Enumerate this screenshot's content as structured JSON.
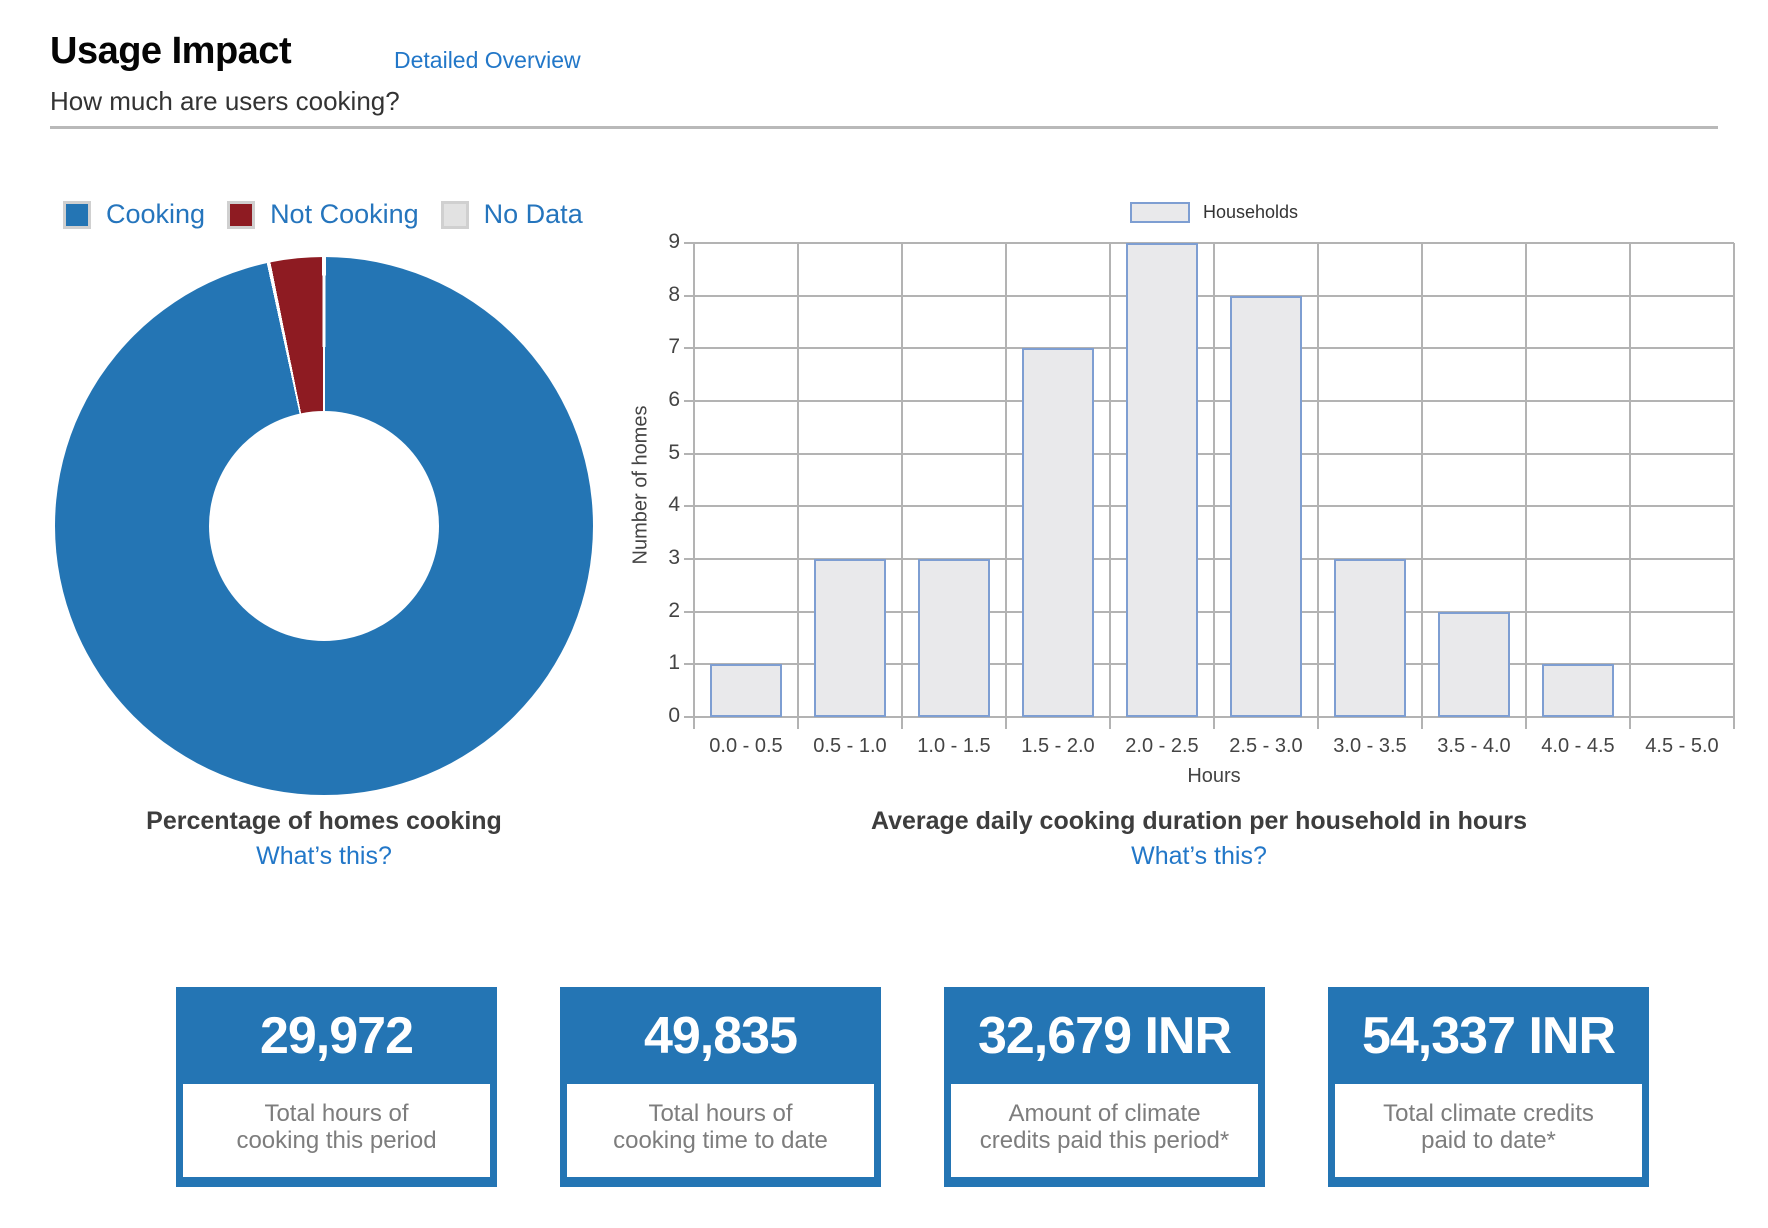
{
  "header": {
    "title": "Usage Impact",
    "link_label": "Detailed Overview",
    "subtitle": "How much are users cooking?"
  },
  "donut": {
    "title": "Percentage of homes cooking",
    "whats_this": "What’s this?"
  },
  "histogram": {
    "legend_label": "Households",
    "title": "Average daily cooking duration per household in hours",
    "whats_this": "What’s this?",
    "xlabel": "Hours",
    "ylabel": "Number of homes"
  },
  "cards": [
    {
      "value": "29,972",
      "label": "Total hours of\ncooking this period"
    },
    {
      "value": "49,835",
      "label": "Total hours of\ncooking time to date"
    },
    {
      "value": "32,679 INR",
      "label": "Amount of climate\ncredits paid this period*"
    },
    {
      "value": "54,337 INR",
      "label": "Total climate credits\npaid to date*"
    }
  ],
  "colors": {
    "brand_blue": "#2475b4",
    "link_blue": "#2277c8",
    "dark_red": "#8e1b22",
    "no_data_gray": "#e2e2e2",
    "bar_fill": "#e9e9eb",
    "bar_border": "#7e9ed2",
    "grid_gray": "#b3b3b3"
  },
  "chart_data": [
    {
      "type": "pie",
      "donut": true,
      "title": "Percentage of homes cooking",
      "labels": [
        "Cooking",
        "Not Cooking",
        "No Data"
      ],
      "values_percent": [
        96.7,
        3.3,
        0
      ],
      "colors": [
        "#2475b4",
        "#8e1b22",
        "#e2e2e2"
      ],
      "legend_position": "top-left",
      "start_angle_deg": 0,
      "direction": "clockwise"
    },
    {
      "type": "bar",
      "title": "Average daily cooking duration per household in hours",
      "categories": [
        "0.0 - 0.5",
        "0.5 - 1.0",
        "1.0 - 1.5",
        "1.5 - 2.0",
        "2.0 - 2.5",
        "2.5 - 3.0",
        "3.0 - 3.5",
        "3.5 - 4.0",
        "4.0 - 4.5",
        "4.5 - 5.0"
      ],
      "series": [
        {
          "name": "Households",
          "values": [
            1,
            3,
            3,
            7,
            9,
            8,
            3,
            2,
            1,
            0
          ]
        }
      ],
      "xlabel": "Hours",
      "ylabel": "Number of homes",
      "ylim": [
        0,
        9
      ],
      "ytick_step": 1,
      "grid": true,
      "legend_position": "top-center"
    }
  ]
}
